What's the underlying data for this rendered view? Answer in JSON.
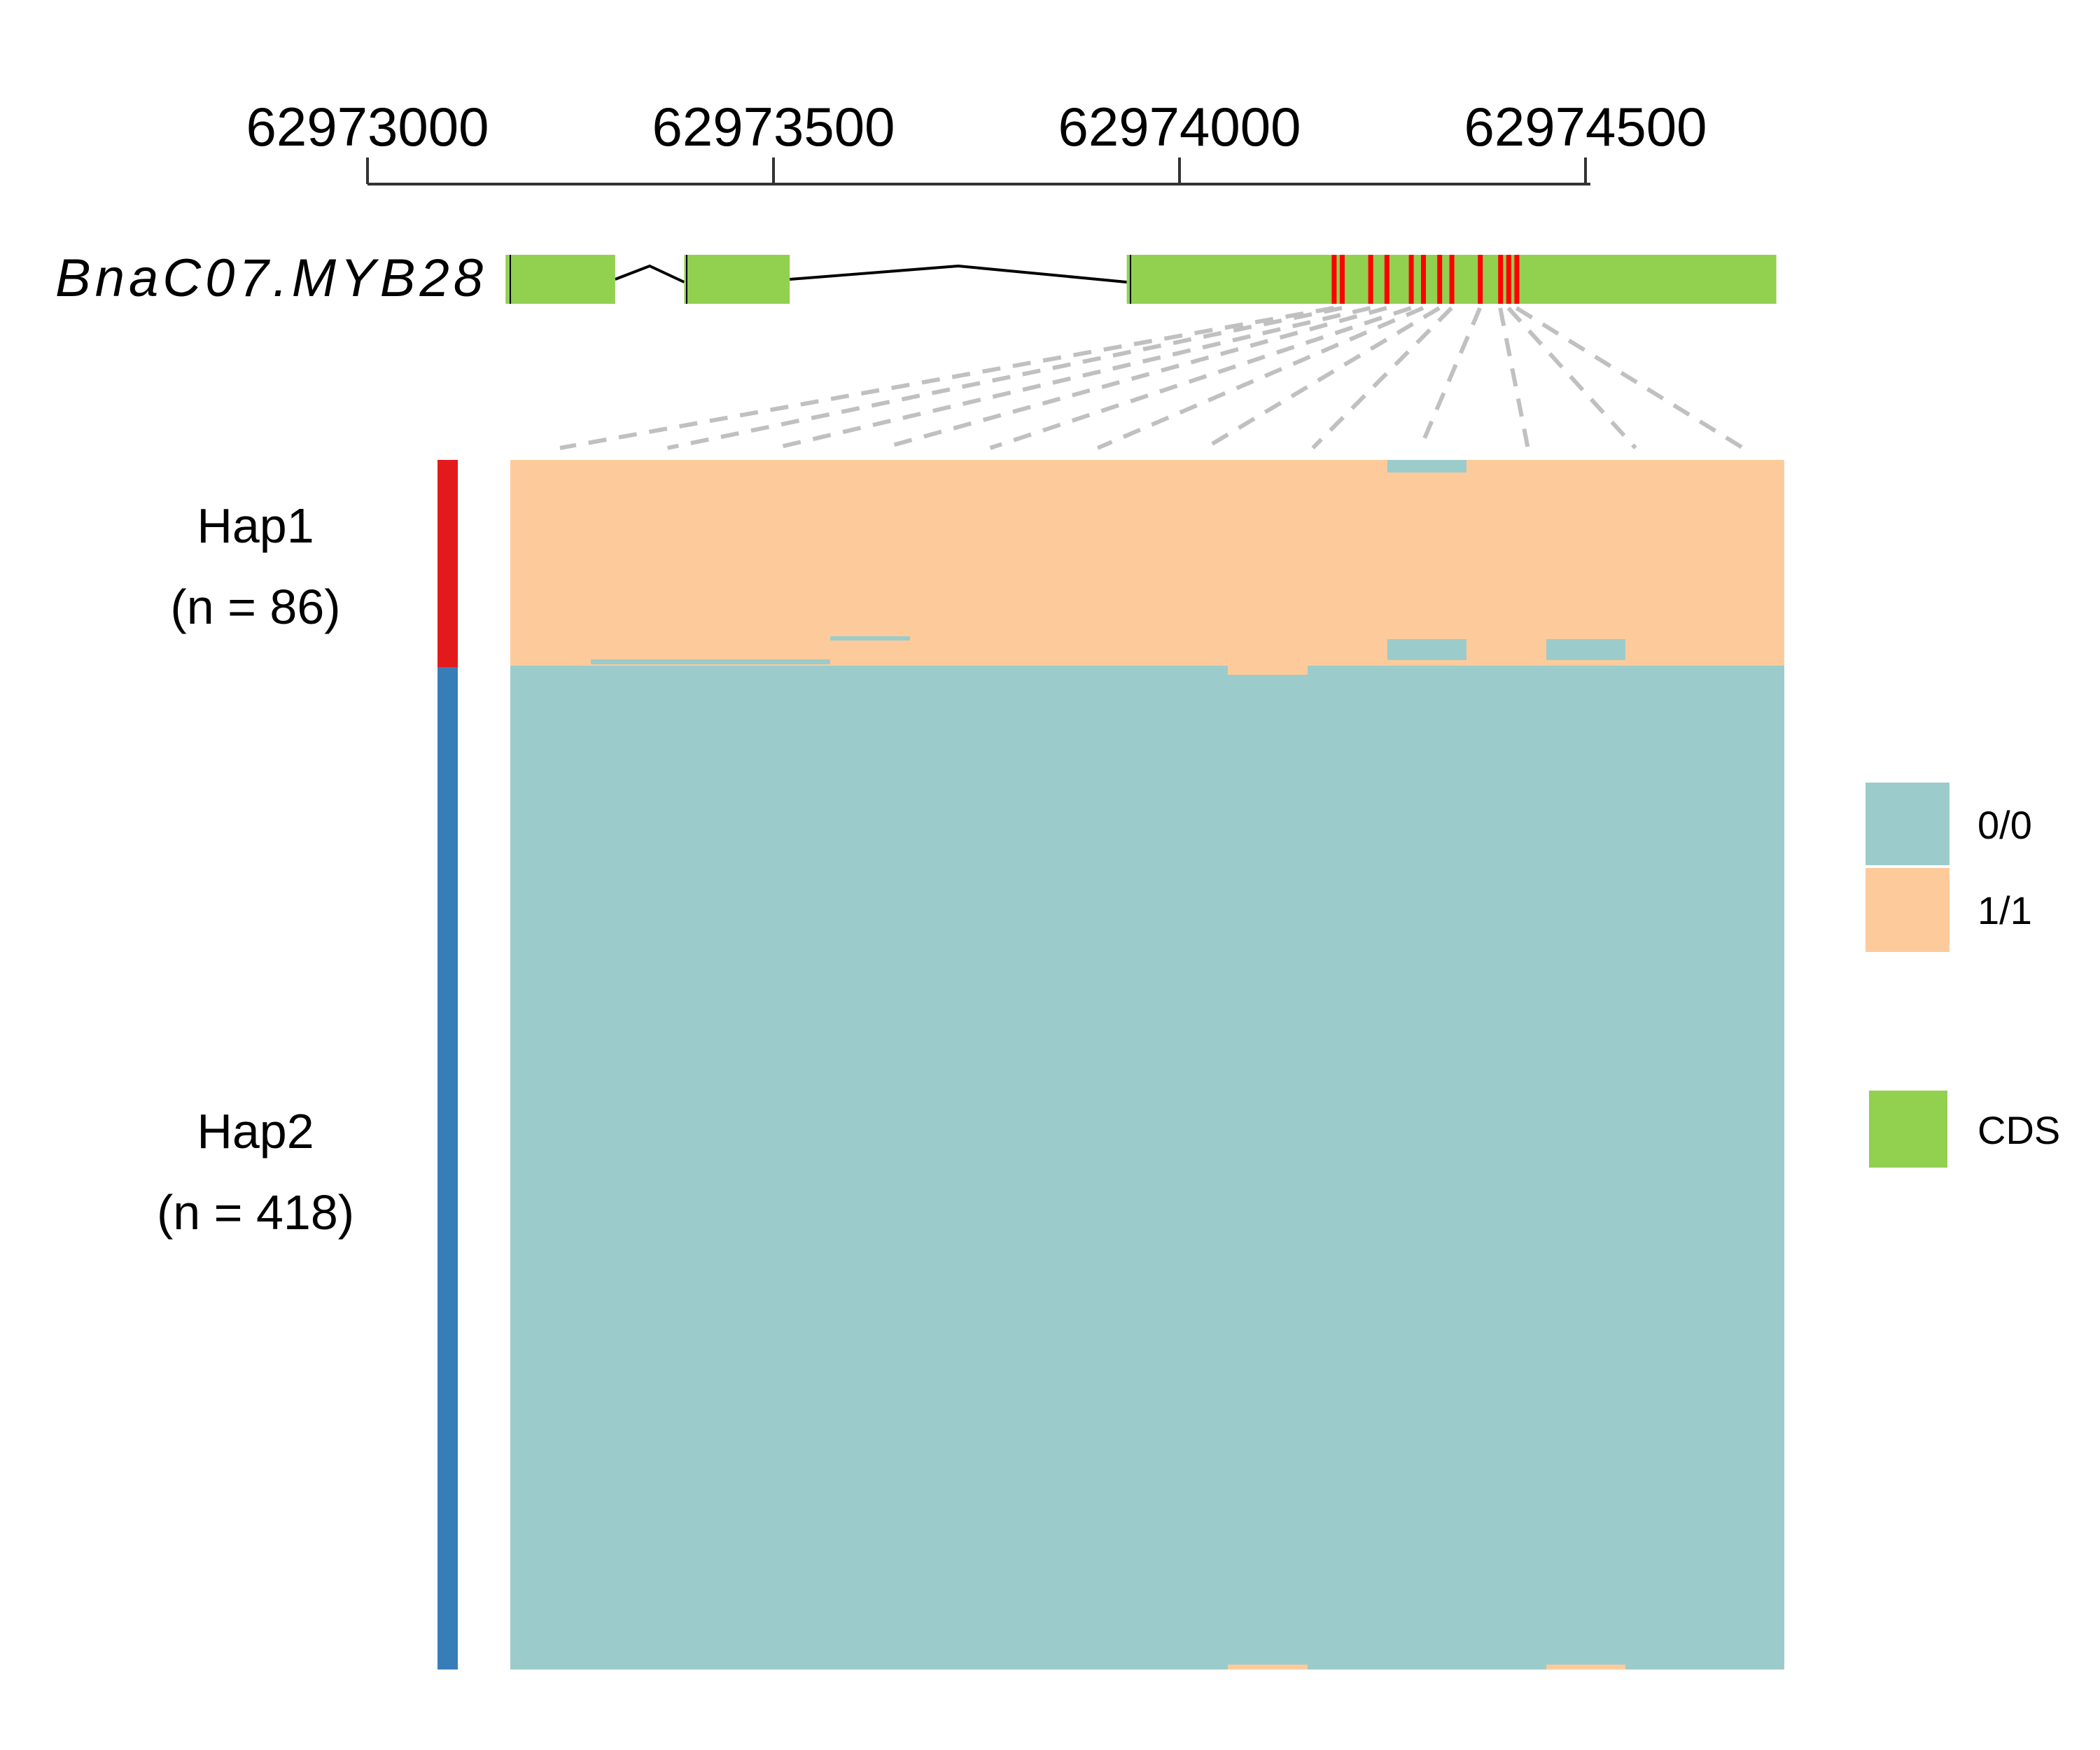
{
  "axis": {
    "ticks": [
      {
        "value": 62973000,
        "label": "62973000"
      },
      {
        "value": 62973500,
        "label": "62973500"
      },
      {
        "value": 62974000,
        "label": "62974000"
      },
      {
        "value": 62974500,
        "label": "62974500"
      }
    ]
  },
  "gene": {
    "name": "BnaC07.MYB28",
    "exons": [
      {
        "start": 62973170,
        "end": 62973305
      },
      {
        "start": 62973390,
        "end": 62973520
      },
      {
        "start": 62973935,
        "end": 62974735
      }
    ],
    "variant_positions": [
      62974190,
      62974200,
      62974235,
      62974255,
      62974285,
      62974300,
      62974320,
      62974335,
      62974370,
      62974395,
      62974405,
      62974415
    ]
  },
  "haplotypes": [
    {
      "name": "Hap1",
      "count_label": "(n = 86)",
      "count": 86,
      "color": "#e31a1c",
      "dominant_genotype": "1/1"
    },
    {
      "name": "Hap2",
      "count_label": "(n = 418)",
      "count": 418,
      "color": "#377eb8",
      "dominant_genotype": "0/0"
    }
  ],
  "colors": {
    "genotype_0_0": "#9ccbcb",
    "genotype_1_1": "#fdcb9b",
    "cds": "#92d050",
    "variant": "#ff0000",
    "connector": "#c0c0c0",
    "intron": "#000000"
  },
  "legend": {
    "genotype_items": [
      {
        "label": "0/0",
        "color": "#9ccbcb"
      },
      {
        "label": "1/1",
        "color": "#fdcb9b"
      }
    ],
    "feature_items": [
      {
        "label": "CDS",
        "color": "#92d050"
      }
    ]
  }
}
